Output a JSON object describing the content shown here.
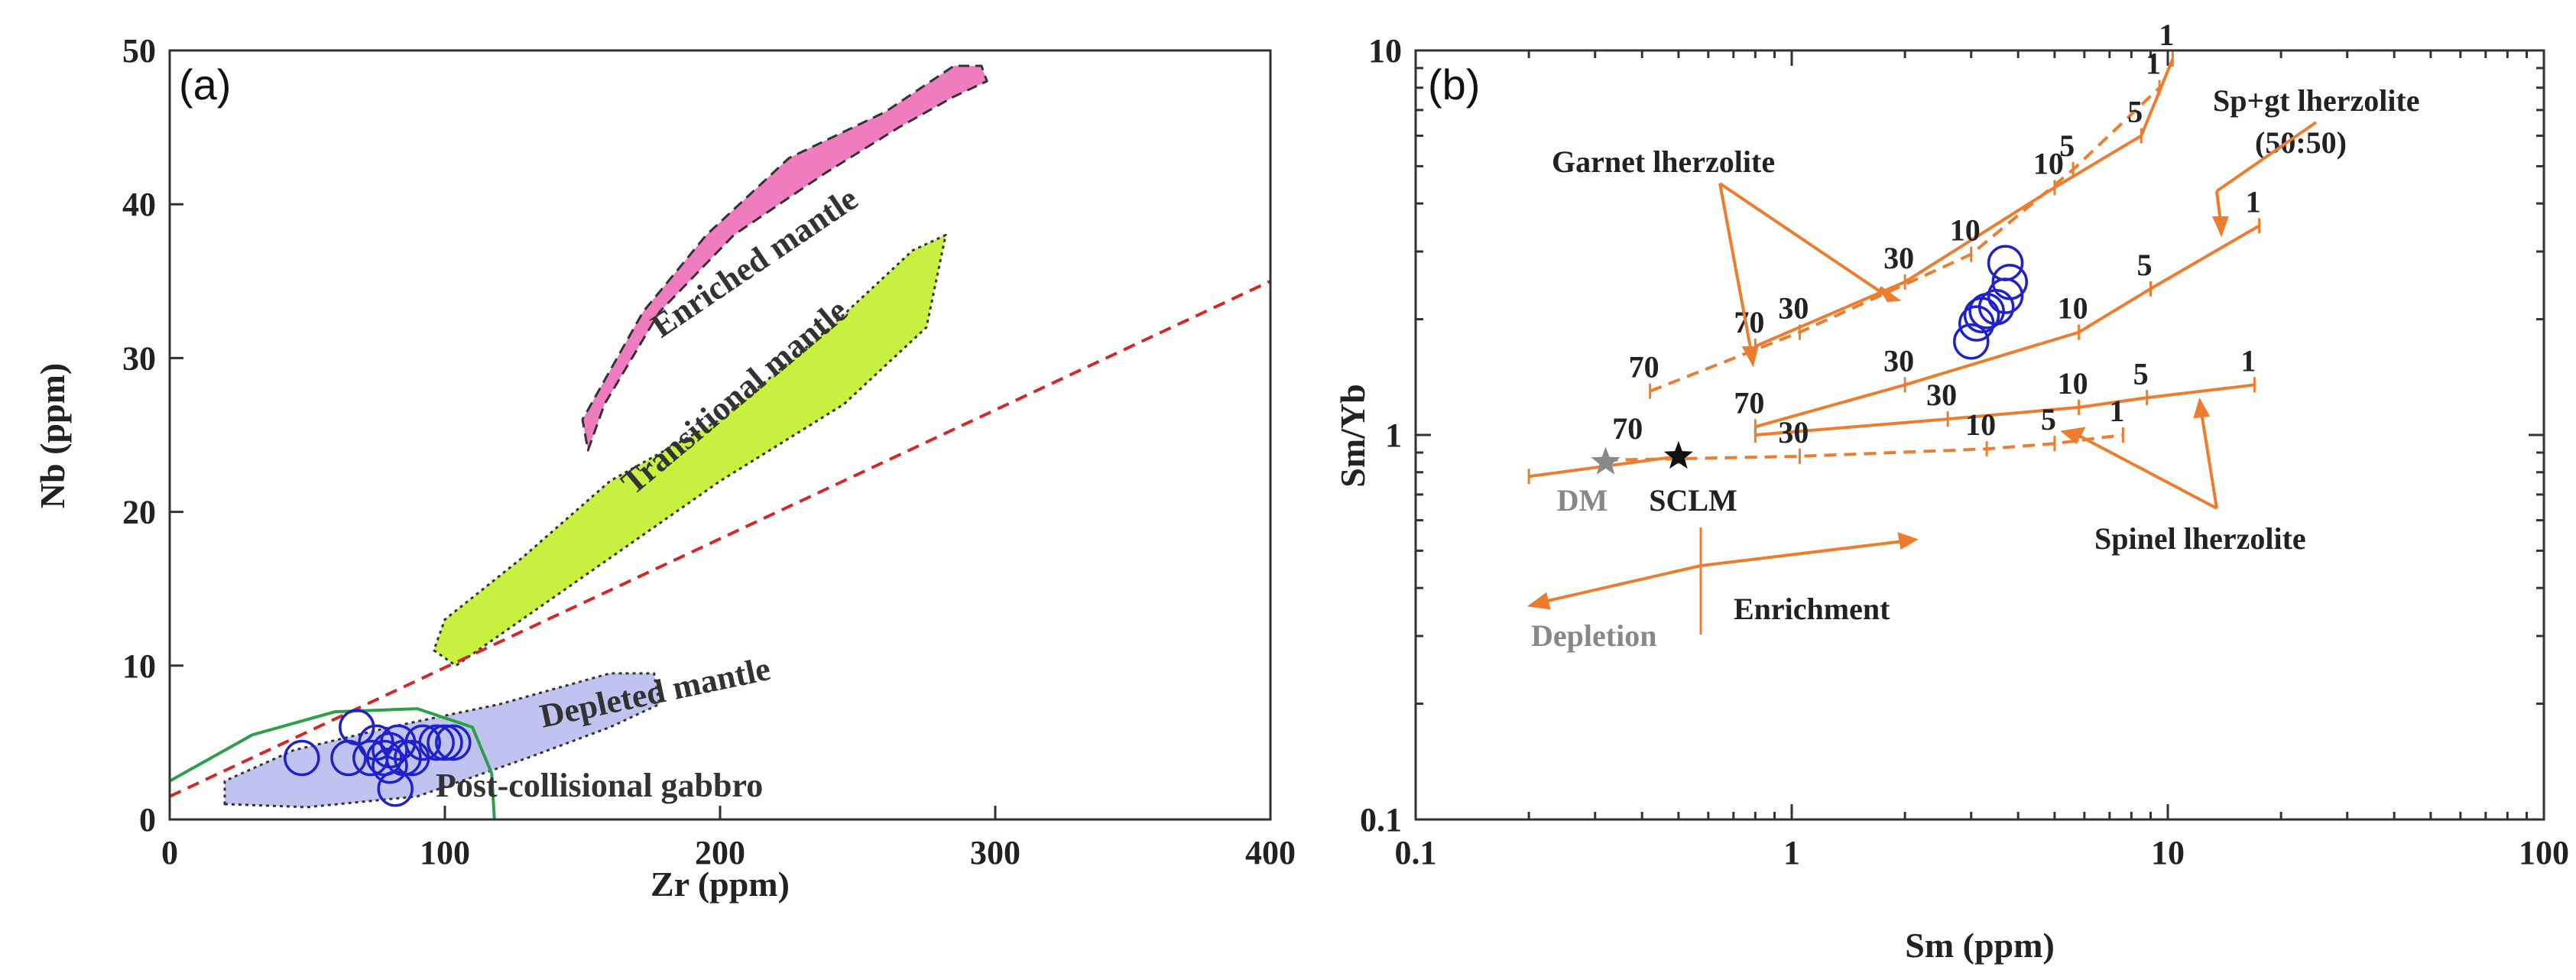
{
  "chart_data": [
    {
      "panel": "(a)",
      "type": "scatter",
      "xlabel": "Zr (ppm)",
      "ylabel": "Nb (ppm)",
      "xlim": [
        0,
        400
      ],
      "ylim": [
        0,
        50
      ],
      "xticks": [
        0,
        100,
        200,
        300,
        400
      ],
      "yticks": [
        0,
        10,
        20,
        30,
        40,
        50
      ],
      "series": [
        {
          "name": "Samples",
          "marker": "open-circle",
          "color": "#1f22c8",
          "points": [
            [
              48,
              4
            ],
            [
              65,
              4
            ],
            [
              68,
              6
            ],
            [
              73,
              4
            ],
            [
              75,
              5
            ],
            [
              78,
              4
            ],
            [
              80,
              3.5
            ],
            [
              80,
              4.5
            ],
            [
              83,
              5
            ],
            [
              85,
              4
            ],
            [
              88,
              4
            ],
            [
              92,
              5
            ],
            [
              97,
              5
            ],
            [
              100,
              5
            ],
            [
              103,
              5
            ],
            [
              82,
              2
            ]
          ]
        }
      ],
      "fields": [
        {
          "name": "Enriched mantle",
          "color": "#f07cc0",
          "polygon": [
            [
              152,
              24
            ],
            [
              158,
              27
            ],
            [
              178,
              33
            ],
            [
              205,
              38
            ],
            [
              238,
              42
            ],
            [
              265,
              45
            ],
            [
              285,
              47
            ],
            [
              297,
              48
            ],
            [
              295,
              49
            ],
            [
              285,
              49
            ],
            [
              260,
              46
            ],
            [
              225,
              43
            ],
            [
              195,
              38
            ],
            [
              172,
              33
            ],
            [
              150,
              26
            ]
          ]
        },
        {
          "name": "Transitional mantle",
          "color": "#c8f040",
          "polygon": [
            [
              96,
              11
            ],
            [
              104,
              10
            ],
            [
              128,
              13
            ],
            [
              160,
              17
            ],
            [
              200,
              22
            ],
            [
              245,
              27
            ],
            [
              275,
              32
            ],
            [
              282,
              38
            ],
            [
              270,
              37
            ],
            [
              240,
              32
            ],
            [
              200,
              26
            ],
            [
              160,
              22
            ],
            [
              128,
              17
            ],
            [
              100,
              13
            ]
          ]
        },
        {
          "name": "Depleted mantle",
          "color": "#c0c2f0",
          "polygon": [
            [
              20,
              1
            ],
            [
              50,
              0.8
            ],
            [
              90,
              1.5
            ],
            [
              130,
              4
            ],
            [
              160,
              6
            ],
            [
              178,
              7.5
            ],
            [
              176,
              9.5
            ],
            [
              160,
              9.5
            ],
            [
              120,
              7.5
            ],
            [
              80,
              6
            ],
            [
              45,
              4.5
            ],
            [
              20,
              2.5
            ]
          ]
        }
      ],
      "lines": [
        {
          "name": "reference line",
          "style": "dashed",
          "color": "#d62728",
          "points": [
            [
              0,
              1.5
            ],
            [
              400,
              35
            ]
          ]
        },
        {
          "name": "Post-collisional gabbro",
          "style": "solid",
          "color": "#2ca048",
          "points": [
            [
              0,
              2.5
            ],
            [
              30,
              5.5
            ],
            [
              60,
              7
            ],
            [
              90,
              7.2
            ],
            [
              110,
              6
            ],
            [
              117,
              3
            ],
            [
              118,
              0
            ]
          ]
        }
      ],
      "annotations": [
        "Enriched mantle",
        "Transitional mantle",
        "Depleted mantle",
        "Post-collisional gabbro"
      ]
    },
    {
      "panel": "(b)",
      "type": "scatter",
      "xscale": "log",
      "yscale": "log",
      "xlabel": "Sm (ppm)",
      "ylabel": "Sm/Yb",
      "xlim": [
        0.1,
        100
      ],
      "ylim": [
        0.1,
        10
      ],
      "xticks": [
        "0.1",
        "1",
        "10",
        "100"
      ],
      "yticks": [
        "0.1",
        "1",
        "10"
      ],
      "series": [
        {
          "name": "Samples",
          "marker": "open-circle",
          "color": "#1f22c8",
          "points": [
            [
              3.0,
              1.75
            ],
            [
              3.1,
              1.95
            ],
            [
              3.2,
              2.05
            ],
            [
              3.3,
              2.1
            ],
            [
              3.5,
              2.15
            ],
            [
              3.7,
              2.3
            ],
            [
              3.8,
              2.5
            ],
            [
              3.7,
              2.8
            ]
          ]
        }
      ],
      "reference_points": [
        {
          "name": "DM",
          "x": 0.32,
          "y": 0.85,
          "color": "#888888",
          "marker": "star"
        },
        {
          "name": "SCLM",
          "x": 0.5,
          "y": 0.88,
          "color": "#111111",
          "marker": "star"
        }
      ],
      "melting_curves": [
        {
          "name": "Garnet lherzolite (DM)",
          "style": "dashed",
          "source": "DM",
          "points": [
            [
              0.42,
              1.3
            ],
            [
              1.05,
              1.85
            ],
            [
              3.0,
              2.95
            ],
            [
              5.6,
              4.9
            ],
            [
              9.5,
              8.0
            ]
          ],
          "labels": [
            {
              "text": "70",
              "x": 0.42,
              "y": 1.3
            },
            {
              "text": "30",
              "x": 1.05,
              "y": 1.85
            },
            {
              "text": "10",
              "x": 3.0,
              "y": 2.95
            },
            {
              "text": "5",
              "x": 5.6,
              "y": 4.9
            },
            {
              "text": "1",
              "x": 9.5,
              "y": 8.0
            }
          ]
        },
        {
          "name": "Garnet lherzolite (SCLM)",
          "style": "solid",
          "source": "SCLM",
          "points": [
            [
              0.8,
              1.7
            ],
            [
              2.0,
              2.5
            ],
            [
              5.0,
              4.4
            ],
            [
              8.5,
              6.0
            ],
            [
              10.3,
              9.5
            ]
          ],
          "labels": [
            {
              "text": "70",
              "x": 0.8,
              "y": 1.7
            },
            {
              "text": "30",
              "x": 2.0,
              "y": 2.5
            },
            {
              "text": "10",
              "x": 5.0,
              "y": 4.4
            },
            {
              "text": "5",
              "x": 8.5,
              "y": 6.0
            },
            {
              "text": "1",
              "x": 10.3,
              "y": 9.5
            }
          ]
        },
        {
          "name": "Sp+gt lherzolite (50:50)",
          "style": "solid",
          "source": "SCLM",
          "points": [
            [
              0.8,
              1.05
            ],
            [
              2.0,
              1.35
            ],
            [
              5.8,
              1.85
            ],
            [
              9.0,
              2.4
            ],
            [
              17.5,
              3.5
            ]
          ],
          "labels": [
            {
              "text": "70",
              "x": 0.8,
              "y": 1.05
            },
            {
              "text": "30",
              "x": 2.0,
              "y": 1.35
            },
            {
              "text": "10",
              "x": 5.8,
              "y": 1.85
            },
            {
              "text": "5",
              "x": 9.0,
              "y": 2.4
            },
            {
              "text": "1",
              "x": 17.5,
              "y": 3.5
            }
          ]
        },
        {
          "name": "Spinel lherzolite (SCLM)",
          "style": "solid",
          "source": "SCLM",
          "points": [
            [
              0.8,
              1.0
            ],
            [
              2.6,
              1.1
            ],
            [
              5.8,
              1.18
            ],
            [
              8.8,
              1.25
            ],
            [
              17.0,
              1.35
            ]
          ],
          "labels": [
            {
              "text": "30",
              "x": 2.6,
              "y": 1.1
            },
            {
              "text": "10",
              "x": 5.8,
              "y": 1.18
            },
            {
              "text": "5",
              "x": 8.8,
              "y": 1.25
            },
            {
              "text": "1",
              "x": 17.0,
              "y": 1.35
            }
          ]
        },
        {
          "name": "Spinel lherzolite (DM)",
          "style": "dashed",
          "source": "DM",
          "points": [
            [
              0.32,
              0.86
            ],
            [
              1.05,
              0.88
            ],
            [
              3.3,
              0.92
            ],
            [
              5.0,
              0.95
            ],
            [
              7.6,
              1.0
            ]
          ],
          "labels": [
            {
              "text": "70",
              "x": 0.38,
              "y": 0.9
            },
            {
              "text": "30",
              "x": 1.05,
              "y": 0.88
            },
            {
              "text": "10",
              "x": 3.3,
              "y": 0.92
            },
            {
              "text": "5",
              "x": 5.0,
              "y": 0.95
            },
            {
              "text": "1",
              "x": 7.6,
              "y": 1.0
            }
          ]
        },
        {
          "name": "Depletion trend",
          "style": "solid",
          "source": "DM",
          "points": [
            [
              0.2,
              0.78
            ],
            [
              0.5,
              0.88
            ]
          ],
          "labels": []
        }
      ],
      "annotations": [
        "Garnet lherzolite",
        "Sp+gt lherzolite",
        "(50:50)",
        "Spinel lherzolite",
        "Depletion",
        "Enrichment"
      ]
    }
  ]
}
